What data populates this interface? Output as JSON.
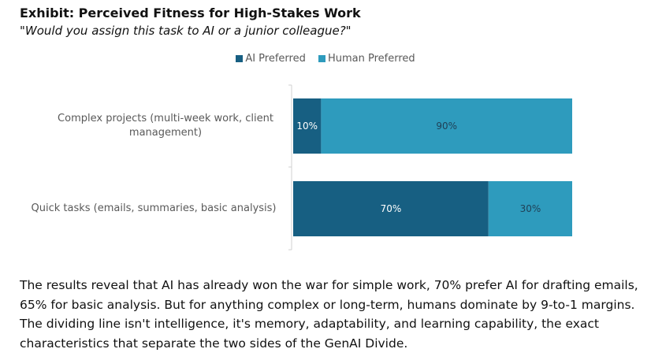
{
  "header": {
    "title": "Exhibit: Perceived Fitness for High-Stakes Work",
    "subtitle": "\"Would you assign this task to AI or a junior colleague?\""
  },
  "chart_data": {
    "type": "bar",
    "orientation": "horizontal",
    "stacked": true,
    "categories": [
      "Complex projects (multi-week work, client management)",
      "Quick tasks (emails, summaries, basic analysis)"
    ],
    "series": [
      {
        "name": "AI Preferred",
        "values": [
          10,
          70
        ],
        "labels": [
          "10%",
          "70%"
        ],
        "color": "#175f82"
      },
      {
        "name": "Human Preferred",
        "values": [
          90,
          30
        ],
        "labels": [
          "90%",
          "30%"
        ],
        "color": "#2e9bbd"
      }
    ],
    "xlim": [
      0,
      100
    ],
    "legend_position": "top",
    "grid": false
  },
  "description": "The results reveal that AI has already won the war for simple work, 70% prefer AI for drafting emails, 65% for basic analysis. But for anything complex or long-term, humans dominate by 9-to-1 margins. The dividing line isn't intelligence, it's memory, adaptability, and learning capability, the exact characteristics that separate the two sides of the GenAI Divide."
}
